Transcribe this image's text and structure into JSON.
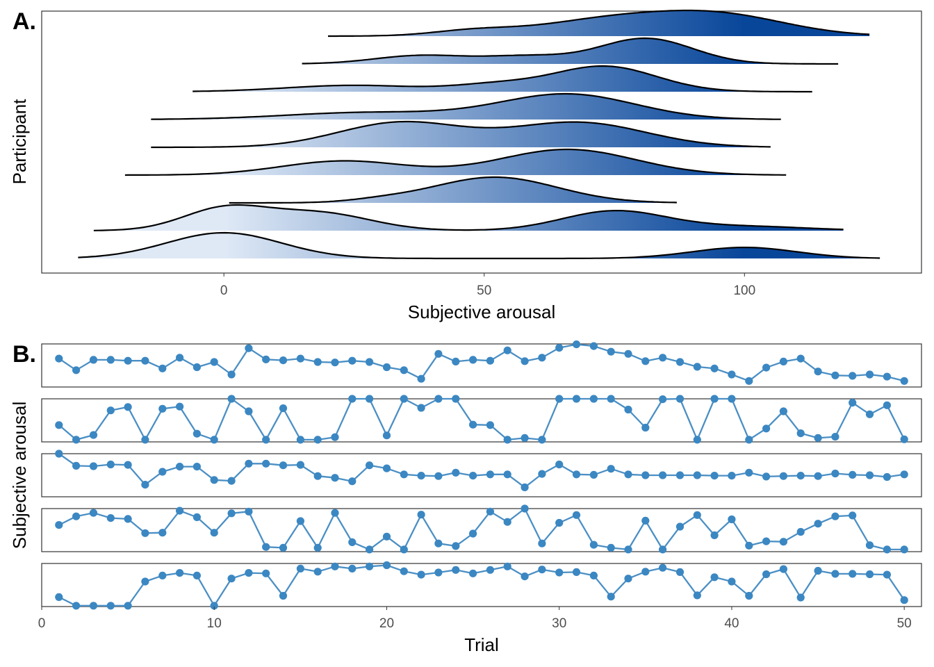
{
  "figure": {
    "panel_a_tag": "A.",
    "panel_b_tag": "B.",
    "colors": {
      "ridge_low": "#dfe9f6",
      "ridge_high": "#08469a",
      "ridge_outline": "#000000",
      "series_line": "#4b8fc4",
      "series_point": "#3b87c2",
      "frame": "#333333",
      "tick_text": "#4d4d4d"
    }
  },
  "chart_data": [
    {
      "type": "area",
      "subtype": "ridgeline-density",
      "xlabel": "Subjective arousal",
      "ylabel": "Participant",
      "xticks": [
        0,
        50,
        100
      ],
      "xlim": [
        -35,
        134
      ],
      "fill": "horizontal gradient by subjective arousal (light blue to dark blue)",
      "grid": false,
      "ridges": [
        {
          "xrange": [
            20,
            124
          ],
          "components": [
            [
              95,
              13,
              1.0
            ],
            [
              73,
              13,
              0.72
            ],
            [
              48,
              8,
              0.25
            ]
          ]
        },
        {
          "xrange": [
            15,
            118
          ],
          "components": [
            [
              81,
              9,
              1.0
            ],
            [
              38,
              9,
              0.33
            ],
            [
              58,
              8,
              0.28
            ]
          ]
        },
        {
          "xrange": [
            -6,
            113
          ],
          "components": [
            [
              73,
              10,
              1.0
            ],
            [
              25,
              13,
              0.25
            ],
            [
              52,
              8,
              0.25
            ]
          ]
        },
        {
          "xrange": [
            -14,
            107
          ],
          "components": [
            [
              66,
              13,
              1.0
            ],
            [
              28,
              16,
              0.28
            ]
          ]
        },
        {
          "xrange": [
            -14,
            105
          ],
          "components": [
            [
              34,
              12,
              0.9
            ],
            [
              68,
              13,
              0.9
            ]
          ]
        },
        {
          "xrange": [
            -19,
            108
          ],
          "components": [
            [
              23,
              12,
              0.55
            ],
            [
              66,
              13,
              1.0
            ]
          ]
        },
        {
          "xrange": [
            1,
            87
          ],
          "components": [
            [
              52,
              12,
              1.0
            ],
            [
              30,
              6,
              0.08
            ]
          ]
        },
        {
          "xrange": [
            -25,
            119
          ],
          "components": [
            [
              0,
              8,
              0.6
            ],
            [
              18,
              10,
              0.5
            ],
            [
              75,
              10,
              0.55
            ],
            [
              100,
              12,
              0.12
            ]
          ]
        },
        {
          "xrange": [
            -28,
            126
          ],
          "components": [
            [
              0,
              11,
              1.0
            ],
            [
              100,
              10,
              0.43
            ]
          ]
        }
      ]
    },
    {
      "type": "line",
      "subtype": "small-multiples with points",
      "xlabel": "Trial",
      "ylabel": "Subjective arousal",
      "xticks": [
        0,
        10,
        20,
        30,
        40,
        50
      ],
      "xlim": [
        0,
        51
      ],
      "ylim": [
        0,
        100
      ],
      "grid": false,
      "x": [
        1,
        2,
        3,
        4,
        5,
        6,
        7,
        8,
        9,
        10,
        11,
        12,
        13,
        14,
        15,
        16,
        17,
        18,
        19,
        20,
        21,
        22,
        23,
        24,
        25,
        26,
        27,
        28,
        29,
        30,
        31,
        32,
        33,
        34,
        35,
        36,
        37,
        38,
        39,
        40,
        41,
        42,
        43,
        44,
        45,
        46,
        47,
        48,
        49,
        50
      ],
      "series": [
        {
          "values": [
            66,
            39,
            63,
            63,
            61,
            61,
            43,
            68,
            46,
            58,
            29,
            90,
            64,
            62,
            66,
            58,
            57,
            61,
            58,
            46,
            39,
            19,
            77,
            59,
            63,
            61,
            85,
            60,
            68,
            91,
            99,
            95,
            82,
            77,
            60,
            68,
            58,
            47,
            43,
            29,
            14,
            45,
            59,
            66,
            36,
            27,
            26,
            29,
            24,
            14
          ]
        },
        {
          "values": [
            39,
            5,
            16,
            73,
            81,
            5,
            77,
            82,
            19,
            5,
            100,
            71,
            5,
            78,
            5,
            5,
            11,
            100,
            100,
            15,
            100,
            79,
            100,
            100,
            40,
            39,
            5,
            9,
            5,
            100,
            100,
            100,
            100,
            75,
            33,
            99,
            100,
            5,
            100,
            100,
            5,
            31,
            71,
            20,
            9,
            12,
            91,
            64,
            85,
            6
          ]
        },
        {
          "values": [
            100,
            72,
            71,
            75,
            74,
            28,
            58,
            70,
            70,
            39,
            37,
            77,
            77,
            73,
            74,
            48,
            44,
            36,
            73,
            66,
            52,
            49,
            48,
            56,
            49,
            52,
            52,
            22,
            53,
            75,
            52,
            51,
            65,
            52,
            50,
            50,
            50,
            50,
            49,
            49,
            56,
            47,
            48,
            49,
            48,
            54,
            51,
            50,
            46,
            52
          ]
        },
        {
          "values": [
            62,
            82,
            90,
            78,
            76,
            43,
            44,
            95,
            80,
            44,
            89,
            93,
            11,
            9,
            71,
            9,
            90,
            22,
            5,
            35,
            5,
            86,
            19,
            13,
            42,
            93,
            69,
            100,
            19,
            67,
            85,
            16,
            9,
            5,
            72,
            5,
            58,
            85,
            38,
            75,
            14,
            24,
            23,
            46,
            65,
            82,
            84,
            15,
            5,
            5
          ]
        },
        {
          "values": [
            22,
            2,
            2,
            2,
            2,
            58,
            72,
            78,
            72,
            2,
            65,
            78,
            77,
            25,
            88,
            81,
            93,
            88,
            93,
            96,
            82,
            74,
            79,
            85,
            77,
            85,
            93,
            70,
            86,
            79,
            80,
            72,
            23,
            65,
            81,
            90,
            80,
            26,
            68,
            58,
            25,
            75,
            87,
            21,
            83,
            76,
            76,
            75,
            74,
            15
          ]
        }
      ]
    }
  ]
}
